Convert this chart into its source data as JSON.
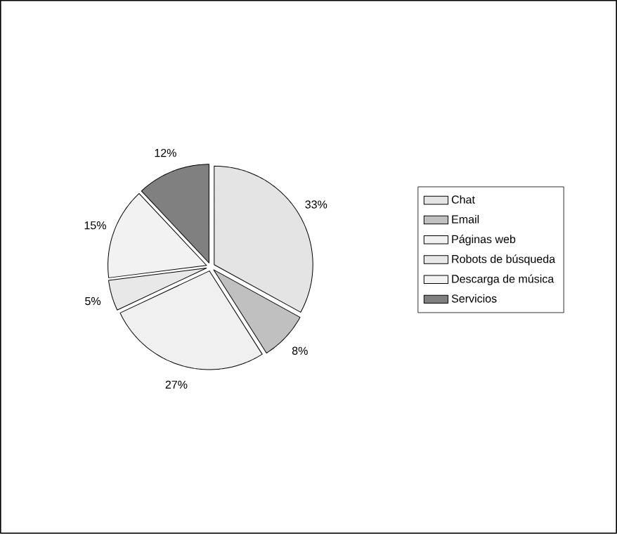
{
  "chart_data": {
    "type": "pie",
    "categories": [
      "Chat",
      "Email",
      "Páginas web",
      "Robots de búsqueda",
      "Descarga de música",
      "Servicios"
    ],
    "values": [
      33,
      8,
      27,
      5,
      15,
      12
    ],
    "value_labels": [
      "33%",
      "8%",
      "27%",
      "5%",
      "15%",
      "12%"
    ],
    "colors": [
      "#e4e4e4",
      "#c0c0c0",
      "#f0f0f0",
      "#e8e8e8",
      "#f2f2f2",
      "#808080"
    ],
    "legend": "right"
  }
}
